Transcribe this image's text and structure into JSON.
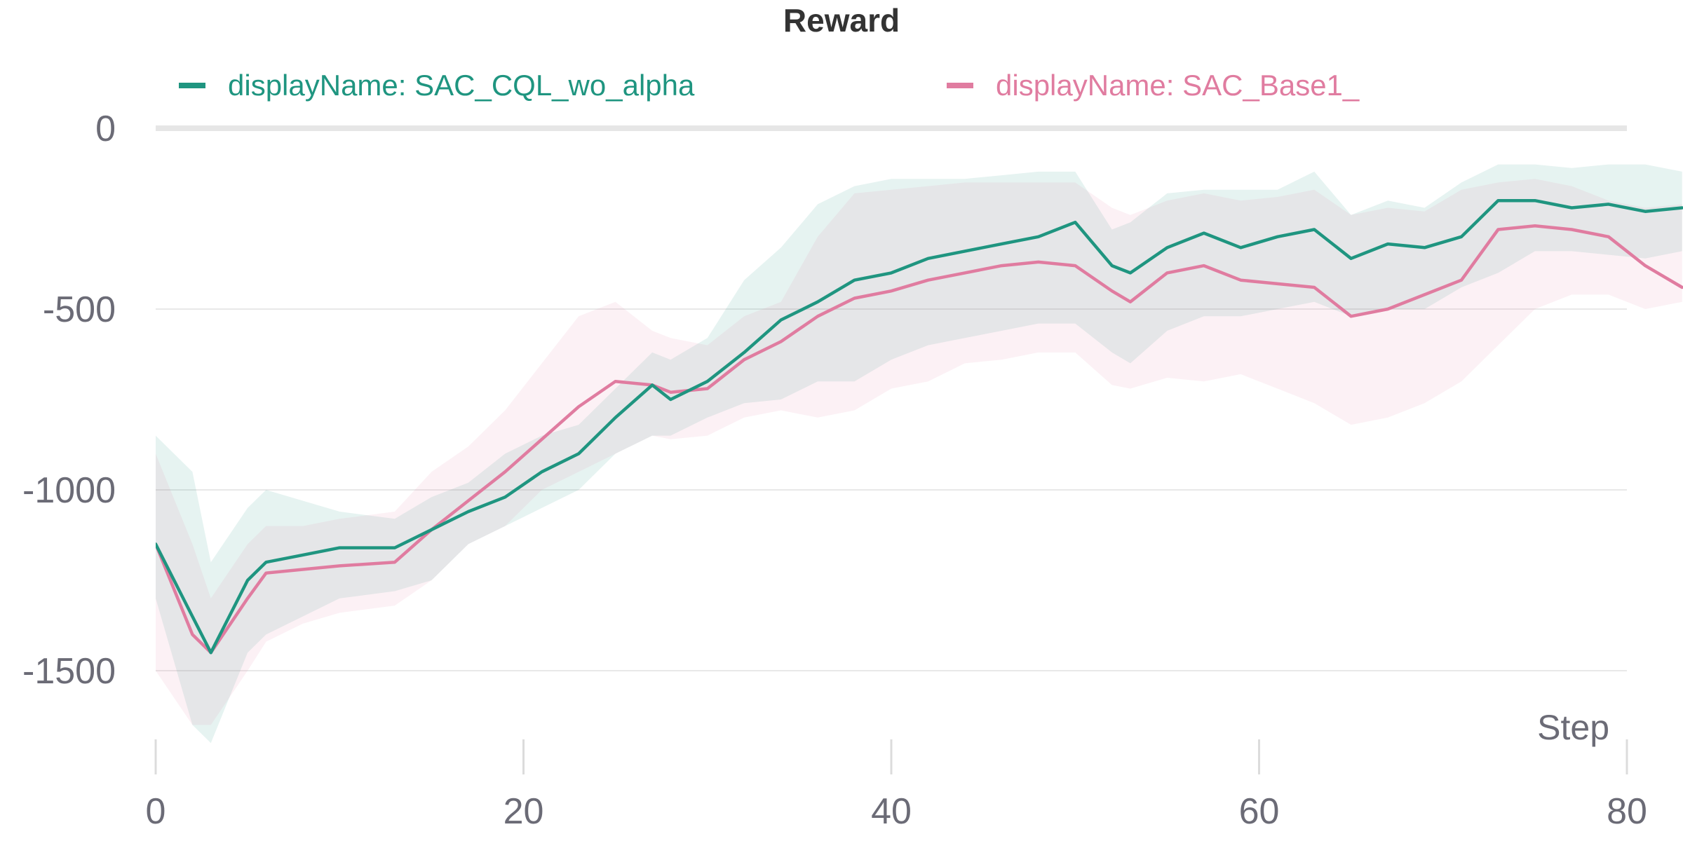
{
  "chart_data": {
    "type": "line",
    "title": "Reward",
    "xlabel": "Step",
    "ylabel": "",
    "xlim": [
      0,
      83
    ],
    "ylim": [
      -1750,
      0
    ],
    "x_ticks": [
      0,
      20,
      40,
      60,
      80
    ],
    "x_tick_labels": [
      "0",
      "20",
      "40",
      "60",
      "80"
    ],
    "y_ticks": [
      0,
      -500,
      -1000,
      -1500
    ],
    "y_tick_labels": [
      "0",
      "-500",
      "-1000",
      "-1500"
    ],
    "grid": true,
    "legend_position": "top",
    "series": [
      {
        "name": "displayName: SAC_CQL_wo_alpha",
        "color": "#1f9580",
        "x": [
          0,
          2,
          3,
          5,
          6,
          8,
          10,
          13,
          15,
          17,
          19,
          21,
          23,
          25,
          27,
          28,
          30,
          32,
          34,
          36,
          38,
          40,
          42,
          44,
          46,
          48,
          50,
          52,
          53,
          55,
          57,
          59,
          61,
          63,
          65,
          67,
          69,
          71,
          73,
          75,
          77,
          79,
          81,
          83
        ],
        "y": [
          -1150,
          -1350,
          -1450,
          -1250,
          -1200,
          -1180,
          -1160,
          -1160,
          -1110,
          -1060,
          -1020,
          -950,
          -900,
          -800,
          -710,
          -750,
          -700,
          -620,
          -530,
          -480,
          -420,
          -400,
          -360,
          -340,
          -320,
          -300,
          -260,
          -380,
          -400,
          -330,
          -290,
          -330,
          -300,
          -280,
          -360,
          -320,
          -330,
          -300,
          -200,
          -200,
          -220,
          -210,
          -230,
          -220
        ],
        "band_upper": [
          -850,
          -950,
          -1200,
          -1050,
          -1000,
          -1030,
          -1060,
          -1080,
          -1020,
          -980,
          -900,
          -850,
          -820,
          -720,
          -620,
          -640,
          -580,
          -420,
          -330,
          -210,
          -160,
          -140,
          -140,
          -140,
          -130,
          -120,
          -120,
          -280,
          -260,
          -180,
          -170,
          -170,
          -170,
          -120,
          -240,
          -200,
          -220,
          -150,
          -100,
          -100,
          -110,
          -100,
          -100,
          -120
        ],
        "band_lower": [
          -1300,
          -1650,
          -1700,
          -1450,
          -1400,
          -1350,
          -1300,
          -1280,
          -1250,
          -1150,
          -1100,
          -1050,
          -1000,
          -900,
          -850,
          -850,
          -800,
          -760,
          -750,
          -700,
          -700,
          -640,
          -600,
          -580,
          -560,
          -540,
          -540,
          -620,
          -650,
          -560,
          -520,
          -520,
          -500,
          -480,
          -520,
          -500,
          -500,
          -440,
          -400,
          -340,
          -340,
          -350,
          -360,
          -340
        ]
      },
      {
        "name": "displayName: SAC_Base1_",
        "color": "#e07ca0",
        "x": [
          0,
          2,
          3,
          5,
          6,
          8,
          10,
          13,
          15,
          17,
          19,
          21,
          23,
          25,
          27,
          28,
          30,
          32,
          34,
          36,
          38,
          40,
          42,
          44,
          46,
          48,
          50,
          52,
          53,
          55,
          57,
          59,
          61,
          63,
          65,
          67,
          69,
          71,
          73,
          75,
          77,
          79,
          81,
          83
        ],
        "y": [
          -1150,
          -1400,
          -1450,
          -1300,
          -1230,
          -1220,
          -1210,
          -1200,
          -1110,
          -1030,
          -950,
          -860,
          -770,
          -700,
          -710,
          -730,
          -720,
          -640,
          -590,
          -520,
          -470,
          -450,
          -420,
          -400,
          -380,
          -370,
          -380,
          -450,
          -480,
          -400,
          -380,
          -420,
          -430,
          -440,
          -520,
          -500,
          -460,
          -420,
          -280,
          -270,
          -280,
          -300,
          -380,
          -440
        ],
        "band_upper": [
          -900,
          -1150,
          -1300,
          -1150,
          -1100,
          -1100,
          -1080,
          -1060,
          -950,
          -880,
          -780,
          -650,
          -520,
          -480,
          -560,
          -580,
          -600,
          -520,
          -480,
          -300,
          -180,
          -170,
          -160,
          -150,
          -150,
          -150,
          -150,
          -220,
          -240,
          -200,
          -180,
          -200,
          -190,
          -170,
          -240,
          -220,
          -230,
          -170,
          -150,
          -140,
          -160,
          -200,
          -220,
          -210
        ],
        "band_lower": [
          -1500,
          -1650,
          -1650,
          -1500,
          -1420,
          -1370,
          -1340,
          -1320,
          -1250,
          -1150,
          -1100,
          -1000,
          -950,
          -900,
          -850,
          -860,
          -850,
          -800,
          -780,
          -800,
          -780,
          -720,
          -700,
          -650,
          -640,
          -620,
          -620,
          -710,
          -720,
          -690,
          -700,
          -680,
          -720,
          -760,
          -820,
          -800,
          -760,
          -700,
          -600,
          -500,
          -460,
          -460,
          -500,
          -480
        ]
      }
    ]
  }
}
